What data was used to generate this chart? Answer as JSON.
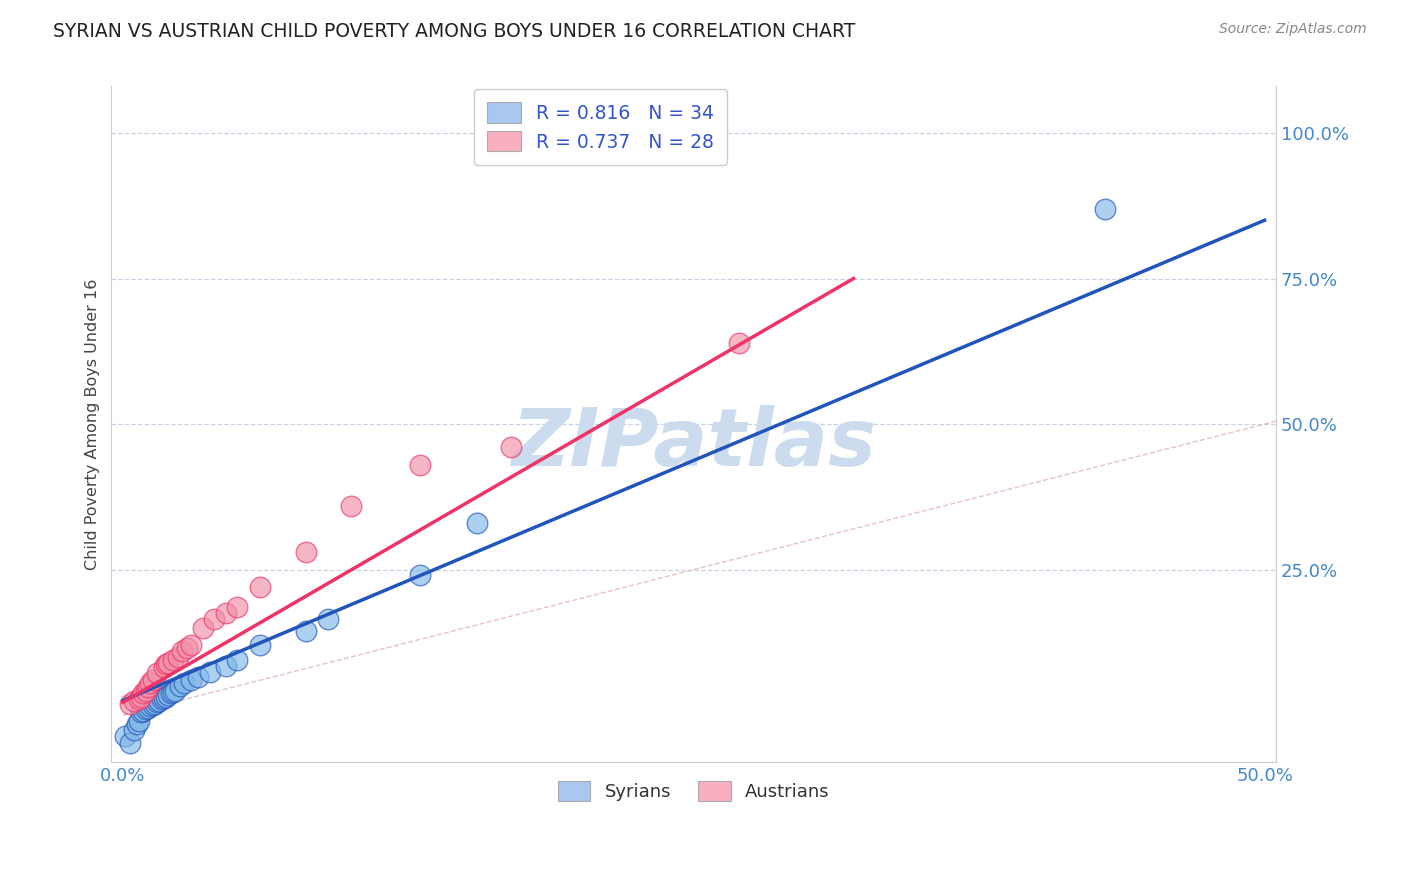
{
  "title": "SYRIAN VS AUSTRIAN CHILD POVERTY AMONG BOYS UNDER 16 CORRELATION CHART",
  "source": "Source: ZipAtlas.com",
  "ylabel": "Child Poverty Among Boys Under 16",
  "xlim": [
    -0.005,
    0.505
  ],
  "ylim": [
    -0.08,
    1.08
  ],
  "x_tick_positions": [
    0.0,
    0.1,
    0.2,
    0.3,
    0.4,
    0.5
  ],
  "x_tick_labels": [
    "0.0%",
    "",
    "",
    "",
    "",
    "50.0%"
  ],
  "y_tick_positions": [
    0.0,
    0.25,
    0.5,
    0.75,
    1.0
  ],
  "y_tick_labels": [
    "",
    "25.0%",
    "50.0%",
    "75.0%",
    "100.0%"
  ],
  "legend_line1": "R = 0.816   N = 34",
  "legend_line2": "R = 0.737   N = 28",
  "legend_color1": "#a8c8f0",
  "legend_color2": "#f8b0c0",
  "bottom_legend": [
    "Syrians",
    "Austrians"
  ],
  "bottom_legend_colors": [
    "#a8c8f0",
    "#f8b0c0"
  ],
  "watermark": "ZIPatlas",
  "watermark_color": "#ccdcee",
  "background_color": "#ffffff",
  "grid_color": "#c8d4e4",
  "title_color": "#222222",
  "title_fontsize": 13.5,
  "source_color": "#888888",
  "tick_color": "#4488cc",
  "ylabel_color": "#444444",
  "syrian_scatter_color": "#80b8e8",
  "austrian_scatter_color": "#f090a8",
  "syrian_line_color": "#2255bb",
  "austrian_line_color": "#ee3366",
  "ref_line_color": "#ddaaaa",
  "syrians_x": [
    0.001,
    0.003,
    0.005,
    0.006,
    0.007,
    0.008,
    0.009,
    0.01,
    0.011,
    0.012,
    0.013,
    0.014,
    0.015,
    0.016,
    0.017,
    0.018,
    0.019,
    0.02,
    0.021,
    0.022,
    0.023,
    0.025,
    0.027,
    0.03,
    0.033,
    0.038,
    0.045,
    0.05,
    0.06,
    0.08,
    0.09,
    0.13,
    0.155,
    0.43
  ],
  "syrians_y": [
    -0.035,
    -0.048,
    -0.025,
    -0.015,
    -0.01,
    0.005,
    0.008,
    0.01,
    0.013,
    0.015,
    0.018,
    0.02,
    0.022,
    0.025,
    0.028,
    0.03,
    0.032,
    0.035,
    0.038,
    0.04,
    0.042,
    0.05,
    0.055,
    0.06,
    0.065,
    0.075,
    0.085,
    0.095,
    0.12,
    0.145,
    0.165,
    0.24,
    0.33,
    0.87
  ],
  "austrians_x": [
    0.003,
    0.005,
    0.007,
    0.008,
    0.009,
    0.01,
    0.011,
    0.012,
    0.013,
    0.015,
    0.018,
    0.019,
    0.02,
    0.022,
    0.024,
    0.026,
    0.028,
    0.03,
    0.035,
    0.04,
    0.045,
    0.05,
    0.06,
    0.08,
    0.1,
    0.13,
    0.17,
    0.27
  ],
  "austrians_y": [
    0.02,
    0.025,
    0.028,
    0.032,
    0.038,
    0.042,
    0.048,
    0.055,
    0.06,
    0.072,
    0.082,
    0.088,
    0.09,
    0.095,
    0.1,
    0.11,
    0.115,
    0.12,
    0.15,
    0.165,
    0.175,
    0.185,
    0.22,
    0.28,
    0.36,
    0.43,
    0.46,
    0.64
  ],
  "syrian_trend": [
    0.0,
    0.5,
    0.025,
    0.85
  ],
  "austrian_trend": [
    0.0,
    0.32,
    0.022,
    0.75
  ]
}
